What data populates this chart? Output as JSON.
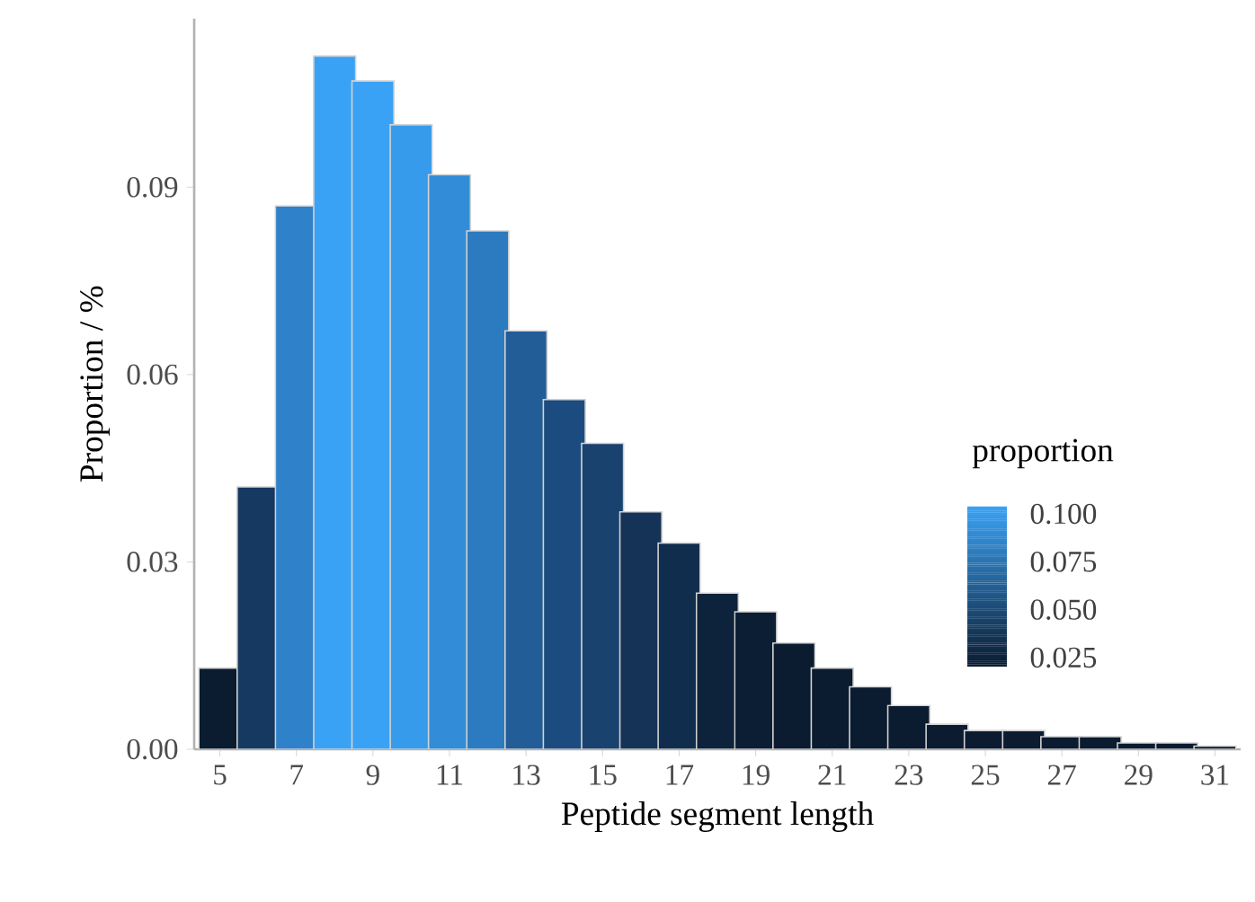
{
  "chart_data": {
    "type": "bar",
    "xlabel": "Peptide segment length",
    "ylabel": "Proportion / %",
    "categories": [
      "5",
      null,
      "7",
      null,
      "9",
      null,
      "11",
      null,
      "13",
      null,
      "15",
      null,
      "17",
      null,
      "19",
      null,
      "21",
      null,
      "23",
      null,
      "25",
      null,
      "27",
      null,
      "29",
      null,
      "31"
    ],
    "values": [
      0.013,
      0.042,
      0.087,
      0.111,
      0.107,
      0.1,
      0.092,
      0.083,
      0.067,
      0.056,
      0.049,
      0.038,
      0.033,
      0.025,
      0.022,
      0.017,
      0.013,
      0.01,
      0.007,
      0.004,
      0.003,
      0.003,
      0.002,
      0.002,
      0.001,
      0.001,
      0.0005
    ],
    "colors": [
      "#0b1b30",
      "#153960",
      "#2f82ca",
      "#3aa2f5",
      "#3aa2f5",
      "#379beb",
      "#328cd7",
      "#2c7bc0",
      "#225d98",
      "#1c4c7f",
      "#19426f",
      "#143357",
      "#112d4d",
      "#0d223b",
      "#0c1e34",
      "#0b1b30",
      "#0b1b30",
      "#0b1b30",
      "#0b1b30",
      "#0b1b30",
      "#0b1b30",
      "#0b1b30",
      "#0b1b30",
      "#0b1b30",
      "#0b1b30",
      "#0b1b30",
      "#0b1b30"
    ],
    "ylim": [
      0,
      0.117
    ],
    "yticks": [
      {
        "value": 0,
        "label": "0.00"
      },
      0.03,
      0.06,
      0.09
    ],
    "annotations": [
      "proportion",
      "0.100",
      "0.075",
      "0.050",
      "0.025"
    ],
    "grid": false
  }
}
